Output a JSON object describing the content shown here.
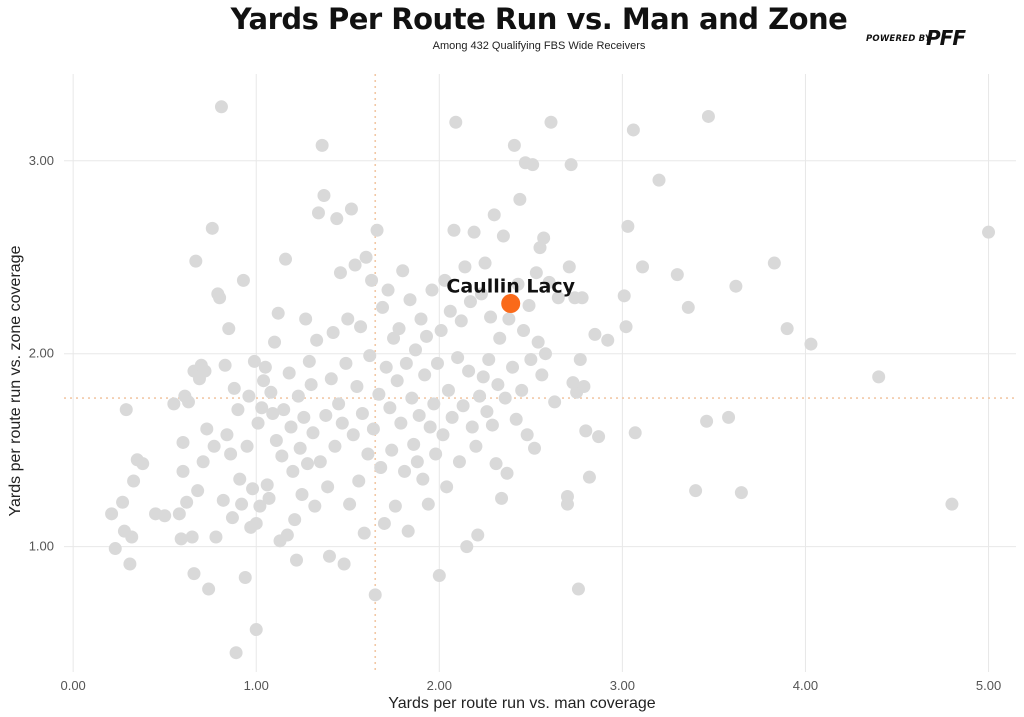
{
  "header": {
    "title": "Yards Per Route Run vs. Man and Zone",
    "subtitle": "Among 432 Qualifying FBS Wide Receivers",
    "logo_powered": "POWERED BY",
    "logo_mark": "PFF"
  },
  "colors": {
    "point": "#d9d9d9",
    "highlight": "#fa6a1a",
    "reference_line": "#f2c8a6",
    "grid": "#e8e8e8"
  },
  "chart_data": {
    "type": "scatter",
    "title": "Yards Per Route Run vs. Man and Zone",
    "subtitle": "Among 432 Qualifying FBS Wide Receivers",
    "xlabel": "Yards per route run vs. man coverage",
    "ylabel": "Yards per route run vs. zone coverage",
    "xlim": [
      -0.05,
      5.15
    ],
    "ylim": [
      0.35,
      3.45
    ],
    "x_ticks": [
      0,
      1,
      2,
      3,
      4,
      5
    ],
    "x_tick_labels": [
      "0.00",
      "1.00",
      "2.00",
      "3.00",
      "4.00",
      "5.00"
    ],
    "y_ticks": [
      1,
      2,
      3
    ],
    "y_tick_labels": [
      "1.00",
      "2.00",
      "3.00"
    ],
    "grid": true,
    "reference_lines": {
      "x": 1.65,
      "y": 1.77
    },
    "highlight": {
      "name": "Caullin Lacy",
      "x": 2.39,
      "y": 2.26
    },
    "points": [
      [
        0.21,
        1.17
      ],
      [
        0.23,
        0.99
      ],
      [
        0.27,
        1.23
      ],
      [
        0.28,
        1.08
      ],
      [
        0.29,
        1.71
      ],
      [
        0.31,
        0.91
      ],
      [
        0.32,
        1.05
      ],
      [
        0.33,
        1.34
      ],
      [
        0.35,
        1.45
      ],
      [
        0.38,
        1.43
      ],
      [
        0.45,
        1.17
      ],
      [
        0.5,
        1.16
      ],
      [
        0.55,
        1.74
      ],
      [
        0.58,
        1.17
      ],
      [
        0.59,
        1.04
      ],
      [
        0.6,
        1.54
      ],
      [
        0.6,
        1.39
      ],
      [
        0.61,
        1.78
      ],
      [
        0.62,
        1.23
      ],
      [
        0.63,
        1.75
      ],
      [
        0.65,
        1.05
      ],
      [
        0.66,
        0.86
      ],
      [
        0.66,
        1.91
      ],
      [
        0.67,
        2.48
      ],
      [
        0.68,
        1.29
      ],
      [
        0.69,
        1.87
      ],
      [
        0.7,
        1.94
      ],
      [
        0.71,
        1.44
      ],
      [
        0.72,
        1.91
      ],
      [
        0.73,
        1.61
      ],
      [
        0.74,
        0.78
      ],
      [
        0.76,
        2.65
      ],
      [
        0.77,
        1.52
      ],
      [
        0.78,
        1.05
      ],
      [
        0.79,
        2.31
      ],
      [
        0.8,
        2.29
      ],
      [
        0.81,
        3.28
      ],
      [
        0.82,
        1.24
      ],
      [
        0.83,
        1.94
      ],
      [
        0.84,
        1.58
      ],
      [
        0.85,
        2.13
      ],
      [
        0.86,
        1.48
      ],
      [
        0.87,
        1.15
      ],
      [
        0.88,
        1.82
      ],
      [
        0.89,
        0.45
      ],
      [
        0.9,
        1.71
      ],
      [
        0.91,
        1.35
      ],
      [
        0.92,
        1.22
      ],
      [
        0.93,
        2.38
      ],
      [
        0.94,
        0.84
      ],
      [
        0.95,
        1.52
      ],
      [
        0.96,
        1.78
      ],
      [
        0.97,
        1.1
      ],
      [
        0.98,
        1.3
      ],
      [
        0.99,
        1.96
      ],
      [
        1.0,
        1.12
      ],
      [
        1.0,
        0.57
      ],
      [
        1.01,
        1.64
      ],
      [
        1.02,
        1.21
      ],
      [
        1.03,
        1.72
      ],
      [
        1.04,
        1.86
      ],
      [
        1.05,
        1.93
      ],
      [
        1.06,
        1.32
      ],
      [
        1.07,
        1.25
      ],
      [
        1.08,
        1.8
      ],
      [
        1.09,
        1.69
      ],
      [
        1.1,
        2.06
      ],
      [
        1.11,
        1.55
      ],
      [
        1.12,
        2.21
      ],
      [
        1.13,
        1.03
      ],
      [
        1.14,
        1.47
      ],
      [
        1.15,
        1.71
      ],
      [
        1.16,
        2.49
      ],
      [
        1.17,
        1.06
      ],
      [
        1.18,
        1.9
      ],
      [
        1.19,
        1.62
      ],
      [
        1.2,
        1.39
      ],
      [
        1.21,
        1.14
      ],
      [
        1.22,
        0.93
      ],
      [
        1.23,
        1.78
      ],
      [
        1.24,
        1.51
      ],
      [
        1.25,
        1.27
      ],
      [
        1.26,
        1.67
      ],
      [
        1.27,
        2.18
      ],
      [
        1.28,
        1.43
      ],
      [
        1.29,
        1.96
      ],
      [
        1.3,
        1.84
      ],
      [
        1.31,
        1.59
      ],
      [
        1.32,
        1.21
      ],
      [
        1.33,
        2.07
      ],
      [
        1.34,
        2.73
      ],
      [
        1.35,
        1.44
      ],
      [
        1.36,
        3.08
      ],
      [
        1.37,
        2.82
      ],
      [
        1.38,
        1.68
      ],
      [
        1.39,
        1.31
      ],
      [
        1.4,
        0.95
      ],
      [
        1.41,
        1.87
      ],
      [
        1.42,
        2.11
      ],
      [
        1.43,
        1.52
      ],
      [
        1.44,
        2.7
      ],
      [
        1.45,
        1.74
      ],
      [
        1.46,
        2.42
      ],
      [
        1.47,
        1.64
      ],
      [
        1.48,
        0.91
      ],
      [
        1.49,
        1.95
      ],
      [
        1.5,
        2.18
      ],
      [
        1.51,
        1.22
      ],
      [
        1.52,
        2.75
      ],
      [
        1.53,
        1.58
      ],
      [
        1.54,
        2.46
      ],
      [
        1.55,
        1.83
      ],
      [
        1.56,
        1.34
      ],
      [
        1.57,
        2.14
      ],
      [
        1.58,
        1.69
      ],
      [
        1.59,
        1.07
      ],
      [
        1.6,
        2.5
      ],
      [
        1.61,
        1.48
      ],
      [
        1.62,
        1.99
      ],
      [
        1.63,
        2.38
      ],
      [
        1.64,
        1.61
      ],
      [
        1.65,
        0.75
      ],
      [
        1.66,
        2.64
      ],
      [
        1.67,
        1.79
      ],
      [
        1.68,
        1.41
      ],
      [
        1.69,
        2.24
      ],
      [
        1.7,
        1.12
      ],
      [
        1.71,
        1.93
      ],
      [
        1.72,
        2.33
      ],
      [
        1.73,
        1.72
      ],
      [
        1.74,
        1.5
      ],
      [
        1.75,
        2.08
      ],
      [
        1.76,
        1.21
      ],
      [
        1.77,
        1.86
      ],
      [
        1.78,
        2.13
      ],
      [
        1.79,
        1.64
      ],
      [
        1.8,
        2.43
      ],
      [
        1.81,
        1.39
      ],
      [
        1.82,
        1.95
      ],
      [
        1.83,
        1.08
      ],
      [
        1.84,
        2.28
      ],
      [
        1.85,
        1.77
      ],
      [
        1.86,
        1.53
      ],
      [
        1.87,
        2.02
      ],
      [
        1.88,
        1.44
      ],
      [
        1.89,
        1.68
      ],
      [
        1.9,
        2.18
      ],
      [
        1.91,
        1.35
      ],
      [
        1.92,
        1.89
      ],
      [
        1.93,
        2.09
      ],
      [
        1.94,
        1.22
      ],
      [
        1.95,
        1.62
      ],
      [
        1.96,
        2.33
      ],
      [
        1.97,
        1.74
      ],
      [
        1.98,
        1.48
      ],
      [
        1.99,
        1.95
      ],
      [
        2.0,
        0.85
      ],
      [
        2.01,
        2.12
      ],
      [
        2.02,
        1.58
      ],
      [
        2.03,
        2.38
      ],
      [
        2.04,
        1.31
      ],
      [
        2.05,
        1.81
      ],
      [
        2.06,
        2.22
      ],
      [
        2.07,
        1.67
      ],
      [
        2.08,
        2.64
      ],
      [
        2.09,
        3.2
      ],
      [
        2.1,
        1.98
      ],
      [
        2.11,
        1.44
      ],
      [
        2.12,
        2.17
      ],
      [
        2.13,
        1.73
      ],
      [
        2.14,
        2.45
      ],
      [
        2.15,
        1.0
      ],
      [
        2.16,
        1.91
      ],
      [
        2.17,
        2.27
      ],
      [
        2.18,
        1.62
      ],
      [
        2.19,
        2.63
      ],
      [
        2.2,
        1.52
      ],
      [
        2.21,
        1.06
      ],
      [
        2.22,
        1.78
      ],
      [
        2.23,
        2.31
      ],
      [
        2.24,
        1.88
      ],
      [
        2.25,
        2.47
      ],
      [
        2.26,
        1.7
      ],
      [
        2.27,
        1.97
      ],
      [
        2.28,
        2.19
      ],
      [
        2.29,
        1.63
      ],
      [
        2.3,
        2.72
      ],
      [
        2.31,
        1.43
      ],
      [
        2.32,
        1.84
      ],
      [
        2.33,
        2.08
      ],
      [
        2.34,
        1.25
      ],
      [
        2.35,
        2.61
      ],
      [
        2.36,
        1.77
      ],
      [
        2.37,
        1.38
      ],
      [
        2.38,
        2.18
      ],
      [
        2.4,
        1.93
      ],
      [
        2.41,
        3.08
      ],
      [
        2.42,
        1.66
      ],
      [
        2.43,
        2.36
      ],
      [
        2.44,
        2.8
      ],
      [
        2.45,
        1.81
      ],
      [
        2.46,
        2.12
      ],
      [
        2.47,
        2.99
      ],
      [
        2.48,
        1.58
      ],
      [
        2.49,
        2.25
      ],
      [
        2.5,
        1.97
      ],
      [
        2.51,
        2.98
      ],
      [
        2.52,
        1.51
      ],
      [
        2.53,
        2.42
      ],
      [
        2.54,
        2.06
      ],
      [
        2.55,
        2.55
      ],
      [
        2.56,
        1.89
      ],
      [
        2.57,
        2.6
      ],
      [
        2.58,
        2.0
      ],
      [
        2.6,
        2.37
      ],
      [
        2.61,
        3.2
      ],
      [
        2.63,
        1.75
      ],
      [
        2.65,
        2.29
      ],
      [
        2.7,
        1.22
      ],
      [
        2.7,
        1.26
      ],
      [
        2.71,
        2.45
      ],
      [
        2.72,
        2.98
      ],
      [
        2.73,
        1.85
      ],
      [
        2.74,
        2.29
      ],
      [
        2.75,
        1.8
      ],
      [
        2.76,
        0.78
      ],
      [
        2.77,
        1.97
      ],
      [
        2.78,
        2.29
      ],
      [
        2.79,
        1.83
      ],
      [
        2.8,
        1.6
      ],
      [
        2.82,
        1.36
      ],
      [
        2.85,
        2.1
      ],
      [
        2.87,
        1.57
      ],
      [
        2.92,
        2.07
      ],
      [
        3.01,
        2.3
      ],
      [
        3.02,
        2.14
      ],
      [
        3.03,
        2.66
      ],
      [
        3.06,
        3.16
      ],
      [
        3.07,
        1.59
      ],
      [
        3.11,
        2.45
      ],
      [
        3.2,
        2.9
      ],
      [
        3.3,
        2.41
      ],
      [
        3.36,
        2.24
      ],
      [
        3.4,
        1.29
      ],
      [
        3.46,
        1.65
      ],
      [
        3.47,
        3.23
      ],
      [
        3.58,
        1.67
      ],
      [
        3.62,
        2.35
      ],
      [
        3.65,
        1.28
      ],
      [
        3.83,
        2.47
      ],
      [
        3.9,
        2.13
      ],
      [
        4.03,
        2.05
      ],
      [
        4.4,
        1.88
      ],
      [
        4.8,
        1.22
      ],
      [
        5.0,
        2.63
      ]
    ]
  }
}
